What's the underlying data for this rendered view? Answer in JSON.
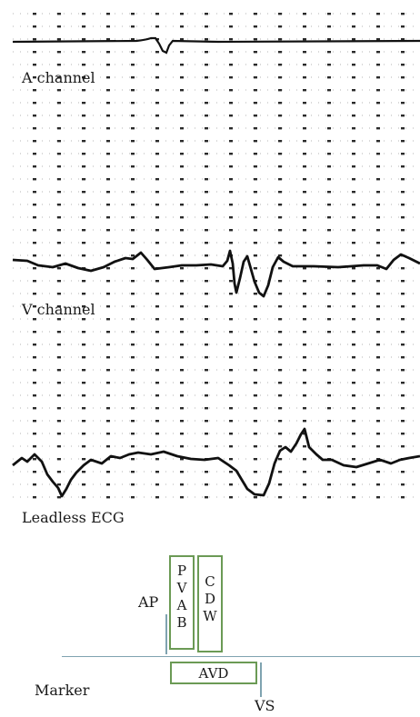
{
  "channels": {
    "a_label": "A channel",
    "v_label": "V channel",
    "ecg_label": "Leadless ECG"
  },
  "marker": {
    "ap_label": "AP",
    "pvab_letters": [
      "P",
      "V",
      "A",
      "B"
    ],
    "cdw_letters": [
      "C",
      "D",
      "W"
    ],
    "avd_label": "AVD",
    "marker_label": "Marker",
    "vs_label": "VS",
    "box_color": "#6b9a55",
    "line_color": "#7fa3b0"
  }
}
